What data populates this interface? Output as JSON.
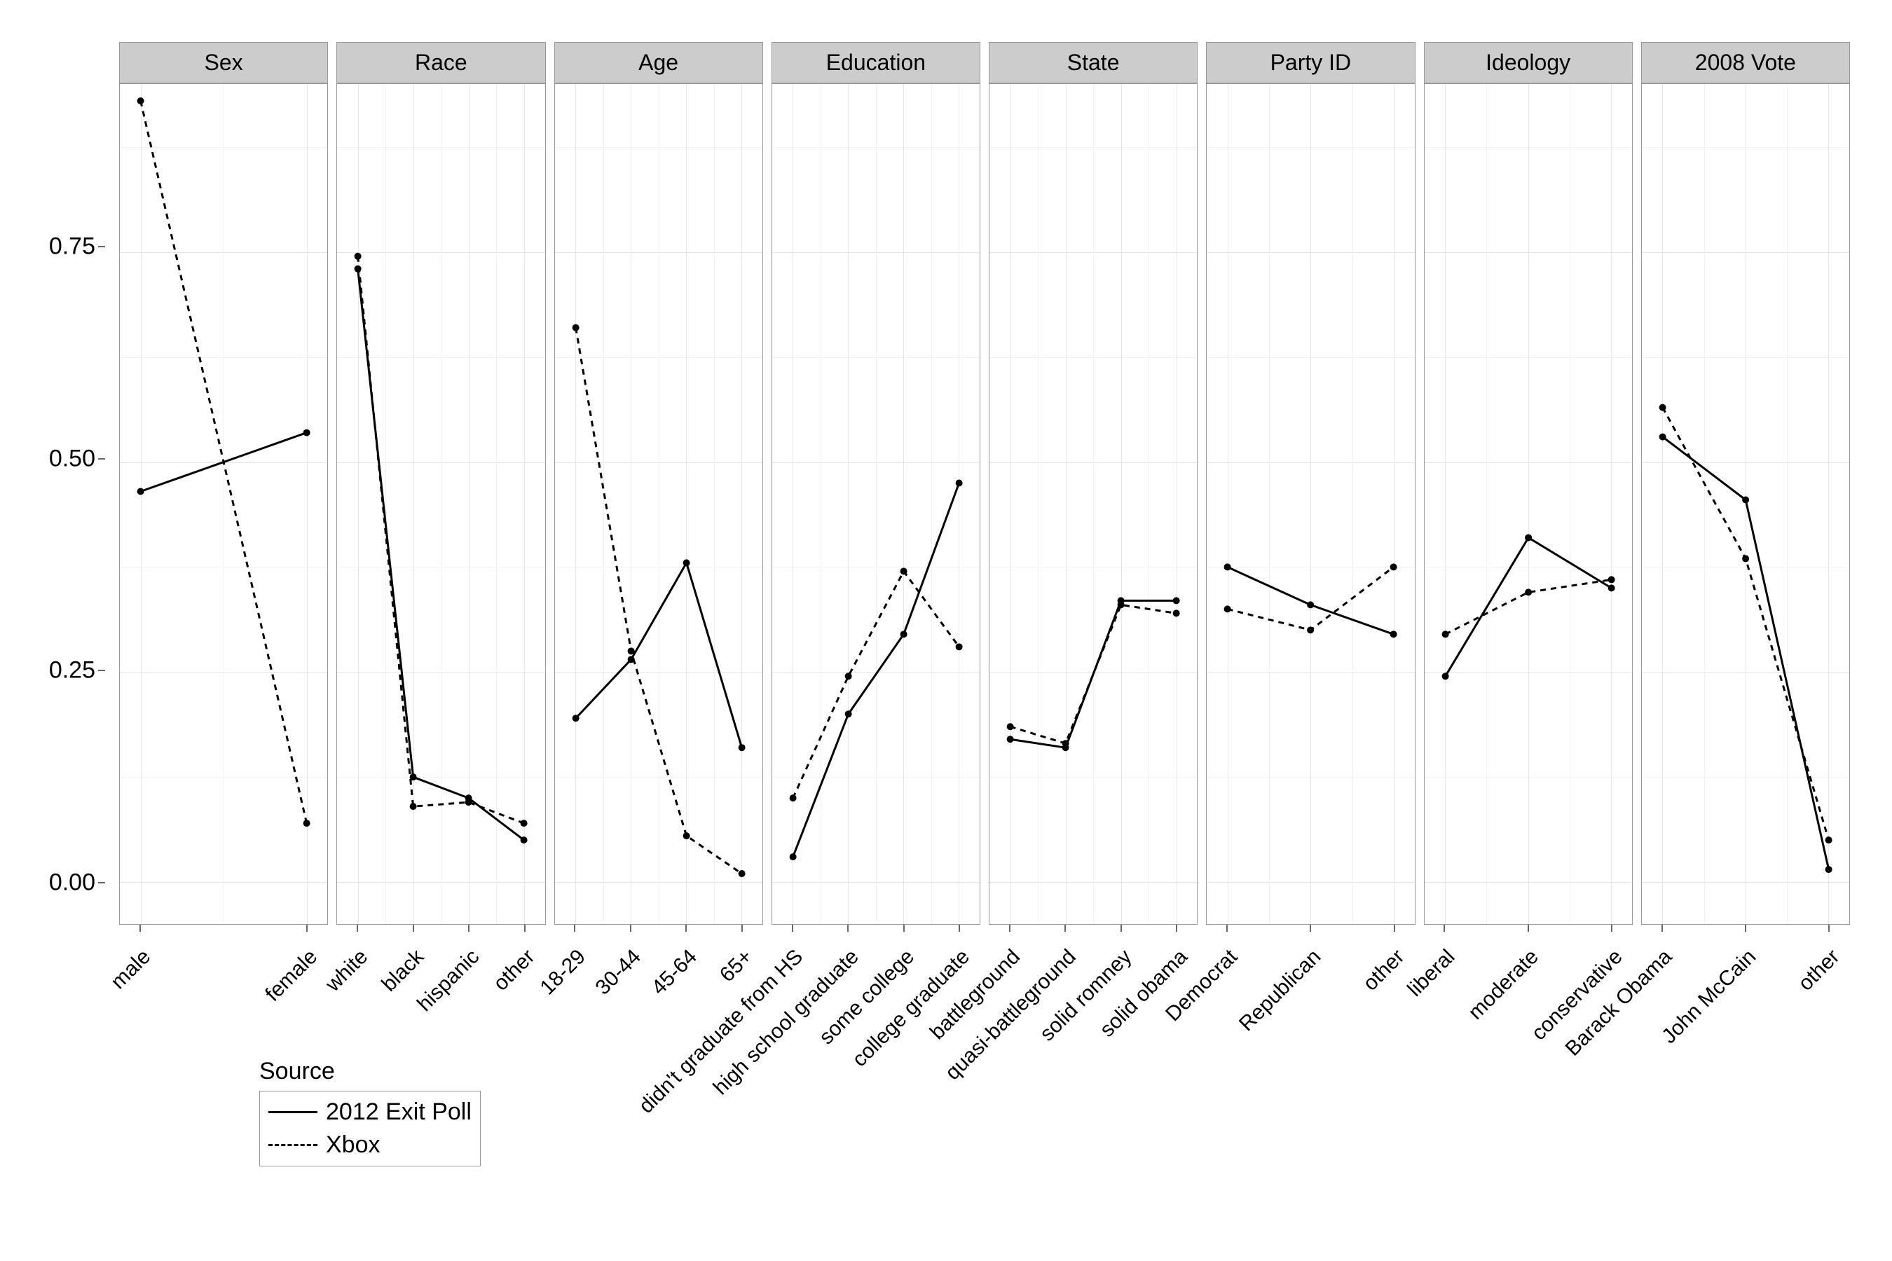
{
  "chart": {
    "type": "faceted-line",
    "background_color": "#ffffff",
    "panel_border_color": "#999999",
    "strip_background": "#cccccc",
    "strip_text_color": "#000000",
    "gridline_major_color": "#e5e5e5",
    "gridline_minor_color": "#f2f2f2",
    "axis_text_color": "#000000",
    "axis_text_fontsize": 34,
    "strip_text_fontsize": 32,
    "x_label_fontsize": 30,
    "x_label_rotation_deg": -45,
    "line_width": 3,
    "point_radius": 5,
    "y_axis": {
      "lim": [
        -0.05,
        0.95
      ],
      "ticks": [
        0.0,
        0.25,
        0.5,
        0.75
      ],
      "tick_labels": [
        "0.00",
        "0.25",
        "0.50",
        "0.75"
      ]
    },
    "series_styles": {
      "exit_poll": {
        "label": "2012 Exit Poll",
        "dash": "solid",
        "color": "#000000"
      },
      "xbox": {
        "label": "Xbox",
        "dash": "dashed",
        "color": "#000000"
      }
    },
    "legend": {
      "title": "Source",
      "items": [
        "exit_poll",
        "xbox"
      ]
    },
    "facets": [
      {
        "title": "Sex",
        "categories": [
          "male",
          "female"
        ],
        "series": {
          "exit_poll": [
            0.465,
            0.535
          ],
          "xbox": [
            0.93,
            0.07
          ]
        }
      },
      {
        "title": "Race",
        "categories": [
          "white",
          "black",
          "hispanic",
          "other"
        ],
        "series": {
          "exit_poll": [
            0.73,
            0.125,
            0.1,
            0.05
          ],
          "xbox": [
            0.745,
            0.09,
            0.095,
            0.07
          ]
        }
      },
      {
        "title": "Age",
        "categories": [
          "18-29",
          "30-44",
          "45-64",
          "65+"
        ],
        "series": {
          "exit_poll": [
            0.195,
            0.265,
            0.38,
            0.16
          ],
          "xbox": [
            0.66,
            0.275,
            0.055,
            0.01
          ]
        }
      },
      {
        "title": "Education",
        "categories": [
          "didn't graduate from HS",
          "high school graduate",
          "some college",
          "college graduate"
        ],
        "series": {
          "exit_poll": [
            0.03,
            0.2,
            0.295,
            0.475
          ],
          "xbox": [
            0.1,
            0.245,
            0.37,
            0.28
          ]
        }
      },
      {
        "title": "State",
        "categories": [
          "battleground",
          "quasi-battleground",
          "solid romney",
          "solid obama"
        ],
        "series": {
          "exit_poll": [
            0.17,
            0.16,
            0.335,
            0.335
          ],
          "xbox": [
            0.185,
            0.165,
            0.33,
            0.32
          ]
        }
      },
      {
        "title": "Party ID",
        "categories": [
          "Democrat",
          "Republican",
          "other"
        ],
        "series": {
          "exit_poll": [
            0.375,
            0.33,
            0.295
          ],
          "xbox": [
            0.325,
            0.3,
            0.375
          ]
        }
      },
      {
        "title": "Ideology",
        "categories": [
          "liberal",
          "moderate",
          "conservative"
        ],
        "series": {
          "exit_poll": [
            0.245,
            0.41,
            0.35
          ],
          "xbox": [
            0.295,
            0.345,
            0.36
          ]
        }
      },
      {
        "title": "2008 Vote",
        "categories": [
          "Barack Obama",
          "John McCain",
          "other"
        ],
        "series": {
          "exit_poll": [
            0.53,
            0.455,
            0.015
          ],
          "xbox": [
            0.565,
            0.385,
            0.05
          ]
        }
      }
    ]
  }
}
